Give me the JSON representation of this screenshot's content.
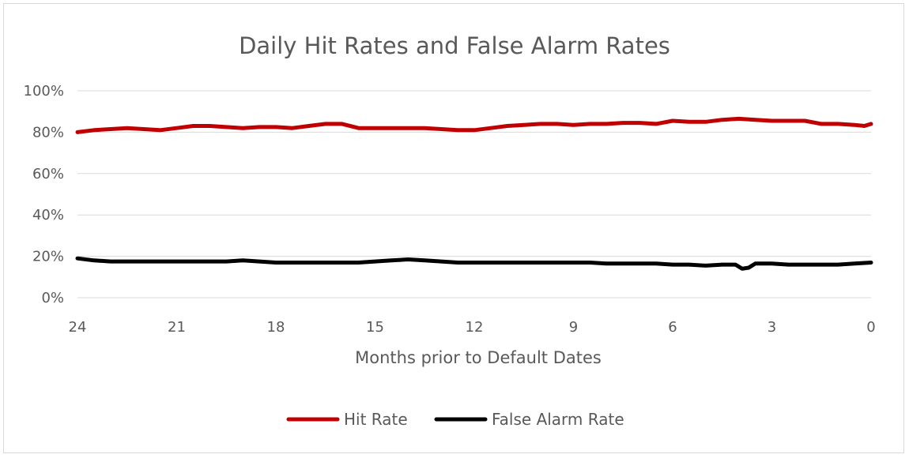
{
  "chart_data": {
    "type": "line",
    "title": "Daily Hit Rates and False Alarm Rates",
    "xlabel": "Months prior to Default Dates",
    "ylabel": "",
    "x_ticks": [
      24,
      21,
      18,
      15,
      12,
      9,
      6,
      3,
      0
    ],
    "y_ticks": [
      "0%",
      "20%",
      "40%",
      "60%",
      "80%",
      "100%"
    ],
    "xlim": [
      24,
      0
    ],
    "ylim": [
      0,
      100
    ],
    "grid": true,
    "legend_position": "bottom",
    "series": [
      {
        "name": "Hit Rate",
        "color": "#c00000",
        "x": [
          24,
          23.5,
          23,
          22.5,
          22,
          21.5,
          21,
          20.5,
          20,
          19.5,
          19,
          18.5,
          18,
          17.5,
          17,
          16.5,
          16,
          15.5,
          15,
          14.5,
          14,
          13.5,
          13,
          12.5,
          12,
          11.5,
          11,
          10.5,
          10,
          9.5,
          9,
          8.5,
          8,
          7.5,
          7,
          6.5,
          6,
          5.5,
          5,
          4.5,
          4,
          3.5,
          3,
          2.5,
          2,
          1.5,
          1,
          0.5,
          0.2,
          0
        ],
        "values": [
          80,
          81,
          81.5,
          82,
          81.5,
          81,
          82,
          83,
          83,
          82.5,
          82,
          82.5,
          82.5,
          82,
          83,
          84,
          84,
          82,
          82,
          82,
          82,
          82,
          81.5,
          81,
          81,
          82,
          83,
          83.5,
          84,
          84,
          83.5,
          84,
          84,
          84.5,
          84.5,
          84,
          85.5,
          85,
          85,
          86,
          86.5,
          86,
          85.5,
          85.5,
          85.5,
          84,
          84,
          83.5,
          83,
          84
        ]
      },
      {
        "name": "False Alarm Rate",
        "color": "#000000",
        "x": [
          24,
          23.5,
          23,
          22.5,
          22,
          21.5,
          21,
          20.5,
          20,
          19.5,
          19,
          18.5,
          18,
          17.5,
          17,
          16.5,
          16,
          15.5,
          15,
          14.5,
          14,
          13.5,
          13,
          12.5,
          12,
          11.5,
          11,
          10.5,
          10,
          9.5,
          9,
          8.5,
          8,
          7.5,
          7,
          6.5,
          6,
          5.5,
          5,
          4.5,
          4.1,
          3.9,
          3.7,
          3.5,
          3,
          2.5,
          2,
          1.5,
          1,
          0.5,
          0
        ],
        "values": [
          19,
          18,
          17.5,
          17.5,
          17.5,
          17.5,
          17.5,
          17.5,
          17.5,
          17.5,
          18,
          17.5,
          17,
          17,
          17,
          17,
          17,
          17,
          17.5,
          18,
          18.5,
          18,
          17.5,
          17,
          17,
          17,
          17,
          17,
          17,
          17,
          17,
          17,
          16.5,
          16.5,
          16.5,
          16.5,
          16,
          16,
          15.5,
          16,
          16,
          14,
          14.5,
          16.5,
          16.5,
          16,
          16,
          16,
          16,
          16.5,
          17
        ]
      }
    ]
  }
}
